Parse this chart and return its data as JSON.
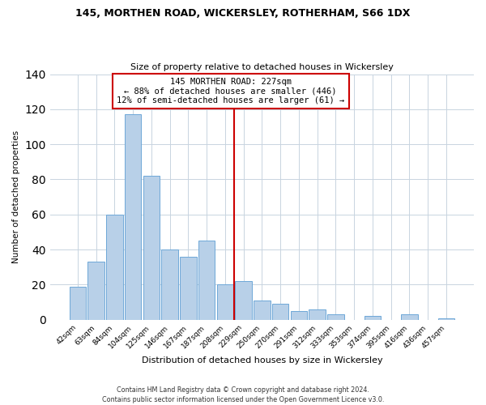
{
  "title": "145, MORTHEN ROAD, WICKERSLEY, ROTHERHAM, S66 1DX",
  "subtitle": "Size of property relative to detached houses in Wickersley",
  "xlabel": "Distribution of detached houses by size in Wickersley",
  "ylabel": "Number of detached properties",
  "bar_labels": [
    "42sqm",
    "63sqm",
    "84sqm",
    "104sqm",
    "125sqm",
    "146sqm",
    "167sqm",
    "187sqm",
    "208sqm",
    "229sqm",
    "250sqm",
    "270sqm",
    "291sqm",
    "312sqm",
    "333sqm",
    "353sqm",
    "374sqm",
    "395sqm",
    "416sqm",
    "436sqm",
    "457sqm"
  ],
  "bar_heights": [
    19,
    33,
    60,
    117,
    82,
    40,
    36,
    45,
    20,
    22,
    11,
    9,
    5,
    6,
    3,
    0,
    2,
    0,
    3,
    0,
    1
  ],
  "bar_color": "#b8d0e8",
  "bar_edge_color": "#6ea8d8",
  "reference_line_color": "#cc0000",
  "annotation_title": "145 MORTHEN ROAD: 227sqm",
  "annotation_line1": "← 88% of detached houses are smaller (446)",
  "annotation_line2": "12% of semi-detached houses are larger (61) →",
  "annotation_box_color": "#ffffff",
  "annotation_box_edge_color": "#cc0000",
  "ylim": [
    0,
    140
  ],
  "yticks": [
    0,
    20,
    40,
    60,
    80,
    100,
    120,
    140
  ],
  "footer_line1": "Contains HM Land Registry data © Crown copyright and database right 2024.",
  "footer_line2": "Contains public sector information licensed under the Open Government Licence v3.0.",
  "background_color": "#ffffff",
  "grid_color": "#c8d4e0"
}
